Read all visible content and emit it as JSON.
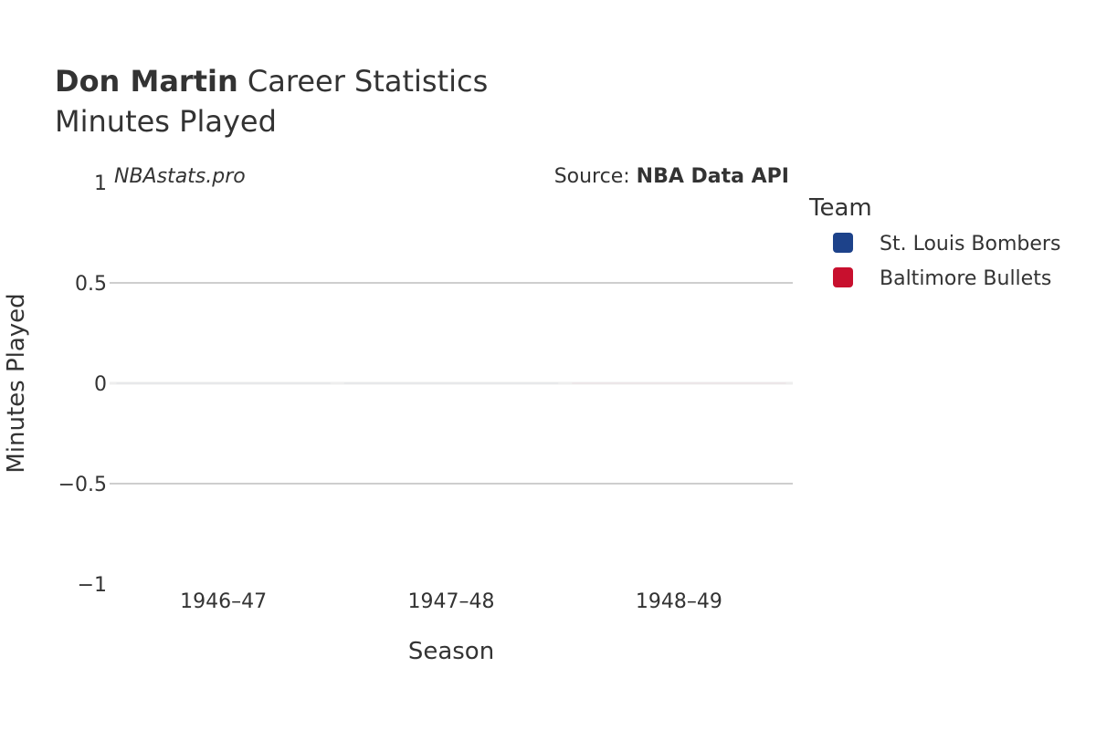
{
  "header": {
    "title_bold": "Don Martin",
    "title_rest": " Career Statistics",
    "subtitle": "Minutes Played"
  },
  "watermark": "NBAstats.pro",
  "source": {
    "prefix": "Source: ",
    "name": "NBA Data API"
  },
  "legend": {
    "title": "Team",
    "items": [
      {
        "label": "St. Louis Bombers",
        "color": "#1d428a"
      },
      {
        "label": "Baltimore Bullets",
        "color": "#c8102e"
      }
    ]
  },
  "chart_data": {
    "type": "bar",
    "title": "Don Martin Career Statistics",
    "subtitle": "Minutes Played",
    "xlabel": "Season",
    "ylabel": "Minutes Played",
    "categories": [
      "1946–47",
      "1947–48",
      "1948–49"
    ],
    "ylim": [
      -1,
      1
    ],
    "yticks": [
      1,
      0.5,
      0,
      -0.5,
      -1
    ],
    "ytick_labels": [
      "1",
      "0.5",
      "0",
      "−0.5",
      "−1"
    ],
    "grid": true,
    "legend_position": "right",
    "series": [
      {
        "name": "St. Louis Bombers",
        "color": "#1d428a",
        "values": [
          0,
          0,
          null
        ]
      },
      {
        "name": "Baltimore Bullets",
        "color": "#c8102e",
        "values": [
          null,
          null,
          0
        ]
      }
    ]
  }
}
